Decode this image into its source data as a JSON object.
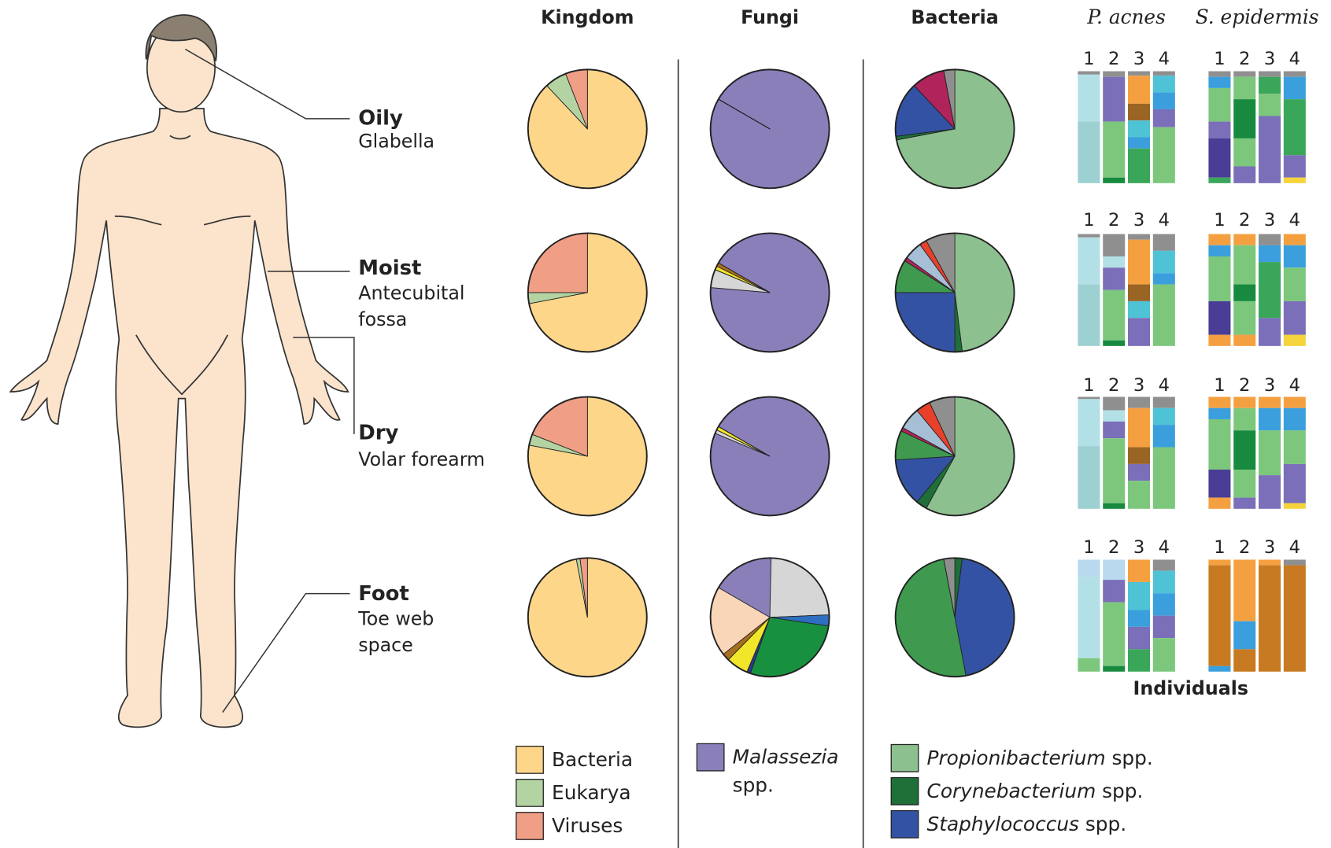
{
  "sites": [
    {
      "zone": "Oily",
      "name": [
        "Glabella"
      ]
    },
    {
      "zone": "Moist",
      "name": [
        "Antecubital",
        "fossa"
      ]
    },
    {
      "zone": "Dry",
      "name": [
        "Volar forearm"
      ]
    },
    {
      "zone": "Foot",
      "name": [
        "Toe web",
        "space"
      ]
    }
  ],
  "chart_data": [
    {
      "type": "pie",
      "title": "Kingdom",
      "categories": [
        "Bacteria",
        "Eukarya",
        "Viruses"
      ],
      "colors": [
        "#fdd68a",
        "#b3d4a2",
        "#f19e86"
      ],
      "pies": [
        [
          88,
          6,
          6
        ],
        [
          72,
          3,
          25
        ],
        [
          78,
          3,
          19
        ],
        [
          97,
          1,
          2
        ]
      ]
    },
    {
      "type": "pie",
      "title": "Fungi",
      "categories": [
        "Malassezia spp.",
        null,
        null,
        null,
        null,
        null,
        null,
        null
      ],
      "colors": [
        "#8b7fba",
        "#d6d6d6",
        "#2f6fc0",
        "#17913f",
        "#2b3a8c",
        "#f1e62a",
        "#a86f1e",
        "#f9d6b8"
      ],
      "pies": [
        [
          100,
          0,
          0,
          0,
          0,
          0,
          0,
          0
        ],
        [
          93,
          5,
          0,
          0,
          0,
          1,
          1,
          0
        ],
        [
          98,
          1,
          0,
          0,
          0,
          1,
          0,
          0
        ],
        [
          17,
          24,
          3,
          28,
          1,
          6,
          2,
          19
        ]
      ]
    },
    {
      "type": "pie",
      "title": "Bacteria",
      "categories": [
        "Propionibacterium spp.",
        "Corynebacterium spp.",
        "Staphylococcus spp.",
        null,
        null,
        null,
        null,
        null
      ],
      "colors": [
        "#8dc08f",
        "#1e6f38",
        "#3452a4",
        "#3f9a50",
        "#b0245b",
        "#a7bfd6",
        "#e8402a",
        "#8f8f8f"
      ],
      "pies": [
        [
          72,
          1,
          15,
          0,
          9,
          0,
          0,
          3
        ],
        [
          48,
          2,
          25,
          9,
          1,
          5,
          2,
          8
        ],
        [
          58,
          3,
          13,
          8,
          1,
          6,
          4,
          7
        ],
        [
          0,
          2,
          45,
          50,
          0,
          0,
          0,
          3
        ]
      ]
    }
  ],
  "strains": {
    "xlabel": "Individuals",
    "individuals": [
      "1",
      "2",
      "3",
      "4"
    ],
    "palette": [
      "#b3e0e6",
      "#9dd0d0",
      "#7a6fb8",
      "#f4a040",
      "#9a6424",
      "#4ec3d6",
      "#7cc77c",
      "#3aa659",
      "#3a9fdc",
      "#4a3d96",
      "#8f8f8f",
      "#f5d33b",
      "#178a3f",
      "#b9d9ef",
      "#c77a22"
    ],
    "panels": [
      {
        "title": "P. acnes",
        "sites": [
          [
            [
              [
                10,
                3
              ],
              [
                0,
                42
              ],
              [
                1,
                55
              ]
            ],
            [
              [
                10,
                5
              ],
              [
                2,
                40
              ],
              [
                6,
                50
              ],
              [
                12,
                5
              ]
            ],
            [
              [
                10,
                4
              ],
              [
                3,
                25
              ],
              [
                4,
                15
              ],
              [
                5,
                15
              ],
              [
                8,
                10
              ],
              [
                7,
                31
              ]
            ],
            [
              [
                10,
                4
              ],
              [
                5,
                15
              ],
              [
                8,
                15
              ],
              [
                2,
                16
              ],
              [
                6,
                50
              ]
            ]
          ],
          [
            [
              [
                10,
                3
              ],
              [
                0,
                42
              ],
              [
                1,
                55
              ]
            ],
            [
              [
                10,
                20
              ],
              [
                0,
                10
              ],
              [
                2,
                20
              ],
              [
                6,
                45
              ],
              [
                12,
                5
              ]
            ],
            [
              [
                10,
                5
              ],
              [
                3,
                40
              ],
              [
                4,
                15
              ],
              [
                5,
                15
              ],
              [
                2,
                25
              ]
            ],
            [
              [
                10,
                15
              ],
              [
                5,
                20
              ],
              [
                8,
                10
              ],
              [
                6,
                55
              ]
            ]
          ],
          [
            [
              [
                10,
                2
              ],
              [
                0,
                42
              ],
              [
                1,
                56
              ]
            ],
            [
              [
                10,
                12
              ],
              [
                0,
                10
              ],
              [
                2,
                15
              ],
              [
                6,
                58
              ],
              [
                12,
                5
              ]
            ],
            [
              [
                10,
                10
              ],
              [
                3,
                35
              ],
              [
                4,
                15
              ],
              [
                2,
                15
              ],
              [
                6,
                25
              ]
            ],
            [
              [
                10,
                10
              ],
              [
                5,
                15
              ],
              [
                8,
                20
              ],
              [
                6,
                55
              ]
            ]
          ],
          [
            [
              [
                13,
                15
              ],
              [
                0,
                73
              ],
              [
                6,
                12
              ]
            ],
            [
              [
                13,
                18
              ],
              [
                2,
                20
              ],
              [
                6,
                57
              ],
              [
                12,
                5
              ]
            ],
            [
              [
                3,
                20
              ],
              [
                5,
                25
              ],
              [
                8,
                15
              ],
              [
                2,
                20
              ],
              [
                7,
                20
              ]
            ],
            [
              [
                10,
                10
              ],
              [
                5,
                20
              ],
              [
                8,
                20
              ],
              [
                2,
                20
              ],
              [
                6,
                30
              ]
            ]
          ]
        ]
      },
      {
        "title": "S. epidermis",
        "sites": [
          [
            [
              [
                10,
                5
              ],
              [
                8,
                10
              ],
              [
                6,
                30
              ],
              [
                2,
                15
              ],
              [
                9,
                35
              ],
              [
                7,
                5
              ]
            ],
            [
              [
                10,
                5
              ],
              [
                6,
                20
              ],
              [
                12,
                35
              ],
              [
                6,
                25
              ],
              [
                2,
                15
              ]
            ],
            [
              [
                10,
                5
              ],
              [
                7,
                15
              ],
              [
                6,
                20
              ],
              [
                2,
                60
              ]
            ],
            [
              [
                10,
                5
              ],
              [
                8,
                20
              ],
              [
                7,
                50
              ],
              [
                2,
                20
              ],
              [
                11,
                5
              ]
            ]
          ],
          [
            [
              [
                3,
                10
              ],
              [
                8,
                10
              ],
              [
                6,
                40
              ],
              [
                9,
                30
              ],
              [
                3,
                10
              ]
            ],
            [
              [
                3,
                10
              ],
              [
                6,
                35
              ],
              [
                12,
                15
              ],
              [
                6,
                30
              ],
              [
                3,
                10
              ]
            ],
            [
              [
                10,
                10
              ],
              [
                8,
                15
              ],
              [
                7,
                50
              ],
              [
                2,
                25
              ]
            ],
            [
              [
                3,
                10
              ],
              [
                8,
                20
              ],
              [
                6,
                30
              ],
              [
                2,
                30
              ],
              [
                11,
                10
              ]
            ]
          ],
          [
            [
              [
                3,
                10
              ],
              [
                8,
                10
              ],
              [
                6,
                45
              ],
              [
                9,
                25
              ],
              [
                3,
                10
              ]
            ],
            [
              [
                3,
                10
              ],
              [
                6,
                20
              ],
              [
                12,
                35
              ],
              [
                6,
                25
              ],
              [
                2,
                10
              ]
            ],
            [
              [
                3,
                10
              ],
              [
                8,
                20
              ],
              [
                6,
                40
              ],
              [
                2,
                30
              ]
            ],
            [
              [
                3,
                10
              ],
              [
                8,
                20
              ],
              [
                6,
                30
              ],
              [
                2,
                35
              ],
              [
                11,
                5
              ]
            ]
          ],
          [
            [
              [
                3,
                5
              ],
              [
                14,
                90
              ],
              [
                8,
                5
              ]
            ],
            [
              [
                3,
                55
              ],
              [
                8,
                25
              ],
              [
                14,
                20
              ]
            ],
            [
              [
                3,
                5
              ],
              [
                14,
                95
              ]
            ],
            [
              [
                10,
                5
              ],
              [
                14,
                95
              ]
            ]
          ]
        ]
      }
    ]
  }
}
